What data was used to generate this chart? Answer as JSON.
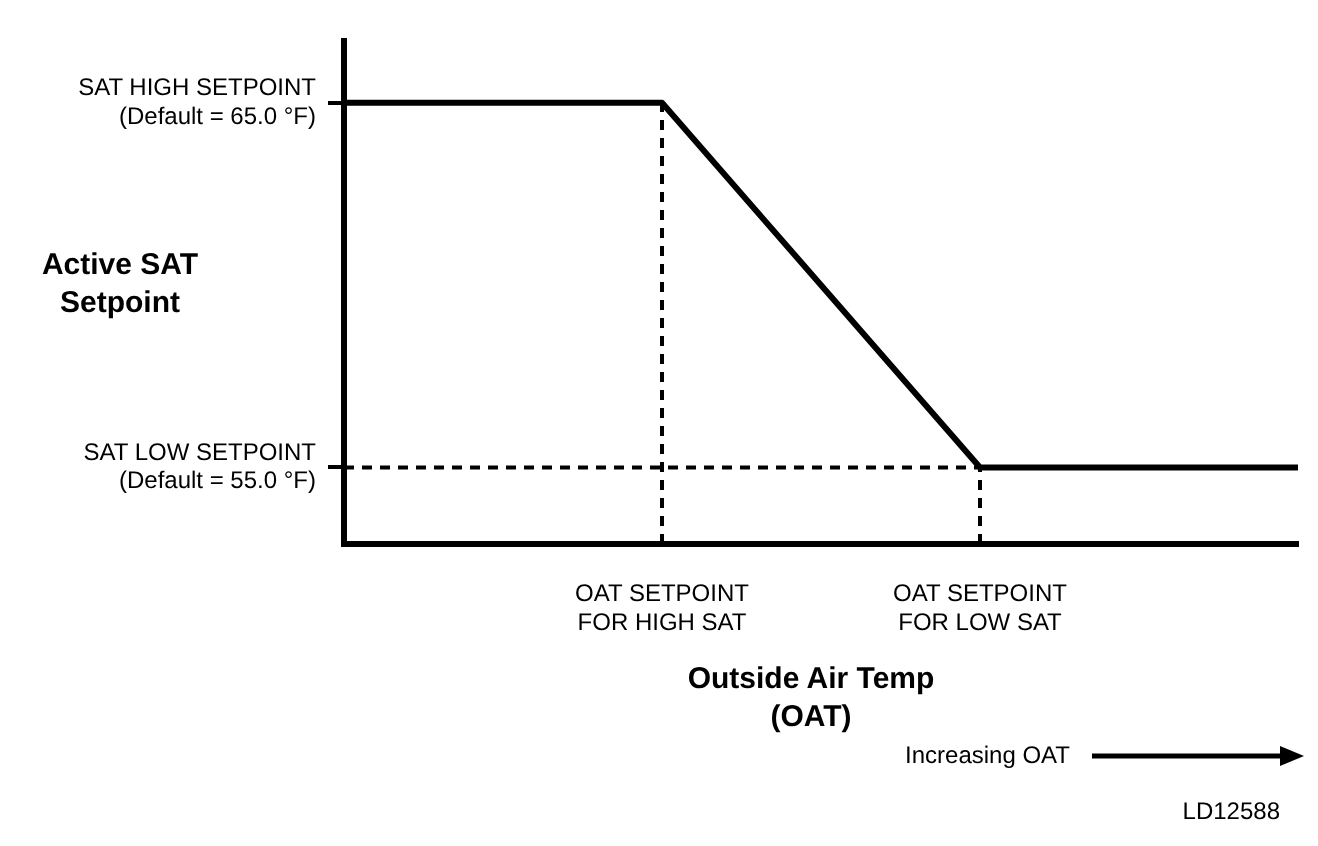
{
  "chart_data": {
    "type": "line",
    "ylabel": "Active SAT\nSetpoint",
    "xlabel": "Outside Air Temp\n(OAT)",
    "categories": [
      null,
      "OAT SETPOINT\nFOR HIGH SAT",
      "OAT SETPOINT\nFOR LOW SAT",
      null
    ],
    "series": [
      {
        "color": "#000000",
        "values": [
          65,
          65,
          55,
          55
        ]
      }
    ],
    "ylim": [
      52.9,
      66.7
    ],
    "yticks": [
      {
        "value": 55,
        "label": "SAT LOW SETPOINT\n(Default = 55.0 °F)"
      },
      {
        "value": 65,
        "label": "SAT HIGH SETPOINT\n(Default = 65.0 °F)"
      }
    ],
    "ref_lines": [
      {
        "axis": "y",
        "value": 55,
        "line_style": "dashed"
      },
      {
        "axis": "x",
        "value": "OAT SETPOINT\nFOR HIGH SAT",
        "line_style": "dashed"
      },
      {
        "axis": "x",
        "value": "OAT SETPOINT\nFOR LOW SAT",
        "line_style": "dashed"
      }
    ],
    "annotations": [
      "Increasing OAT",
      "LD12588"
    ],
    "grid": false,
    "legend": false,
    "marker": "none",
    "line_style": "solid"
  }
}
